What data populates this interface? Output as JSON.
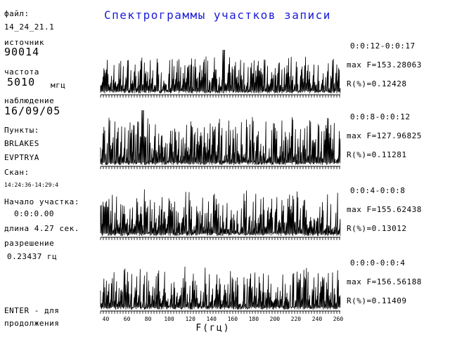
{
  "title": "Спектрограммы участков записи",
  "sidebar": {
    "file_label": "файл:",
    "file_value": "14_24_21.1",
    "source_label": "источник",
    "source_value": "90014",
    "freq_label": "частота",
    "freq_value": "5010",
    "freq_unit": "мгц",
    "obs_label": "наблюдение",
    "obs_value": "16/09/05",
    "points_label": "Пункты:",
    "point1": "BRLAKES",
    "point2": "EVPTRYA",
    "scan_label": "Скан:",
    "scan_value": "14:24:36-14:29:4",
    "start_label": "Начало участка:",
    "start_value": "0:0:0.00",
    "length_text": "длина 4.27 сек.",
    "res_label": "разрешение",
    "res_value": "0.23437 гц",
    "enter_line1": "ENTER - для",
    "enter_line2": "продолжения"
  },
  "panels": [
    {
      "time": "0:0:12-0:0:17",
      "maxf": "max F=153.28063",
      "r": "R(%)=0.12428"
    },
    {
      "time": "0:0:8-0:0:12",
      "maxf": "max F=127.96825",
      "r": "R(%)=0.11281"
    },
    {
      "time": "0:0:4-0:0:8",
      "maxf": "max F=155.62438",
      "r": "R(%)=0.13012"
    },
    {
      "time": "0:0:0-0:0:4",
      "maxf": "max F=156.56188",
      "r": "R(%)=0.11409"
    }
  ],
  "xaxis": {
    "label": "F(гц)",
    "ticks": [
      "40",
      "60",
      "80",
      "100",
      "120",
      "140",
      "160",
      "180",
      "200",
      "220",
      "240",
      "260"
    ],
    "min": 35,
    "max": 262
  },
  "colors": {
    "title": "#1a1ad8",
    "trace": "#000000",
    "background": "#ffffff"
  }
}
